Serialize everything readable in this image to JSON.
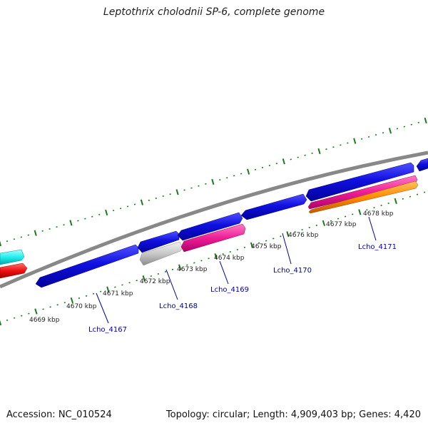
{
  "title": "Leptothrix cholodnii SP-6, complete genome",
  "footer": {
    "accession": "Accession: NC_010524",
    "summary": "Topology: circular; Length: 4,909,403 bp; Genes: 4,420"
  },
  "ticks": [
    "4669 kbp",
    "4670 kbp",
    "4671 kbp",
    "4672 kbp",
    "4673 kbp",
    "4674 kbp",
    "4675 kbp",
    "4676 kbp",
    "4677 kbp",
    "4678 kbp"
  ],
  "genes": [
    "Lcho_4167",
    "Lcho_4168",
    "Lcho_4169",
    "Lcho_4170",
    "Lcho_4171"
  ],
  "colors": {
    "cds": "#1010e0",
    "rrna_teal": "#22eeee",
    "red": "#ee1010",
    "pink": "#ee1e96",
    "orange": "#ff8c00",
    "gray": "#c8c8c8",
    "backbone": "#888888",
    "ruler": "#1a7a1a"
  }
}
